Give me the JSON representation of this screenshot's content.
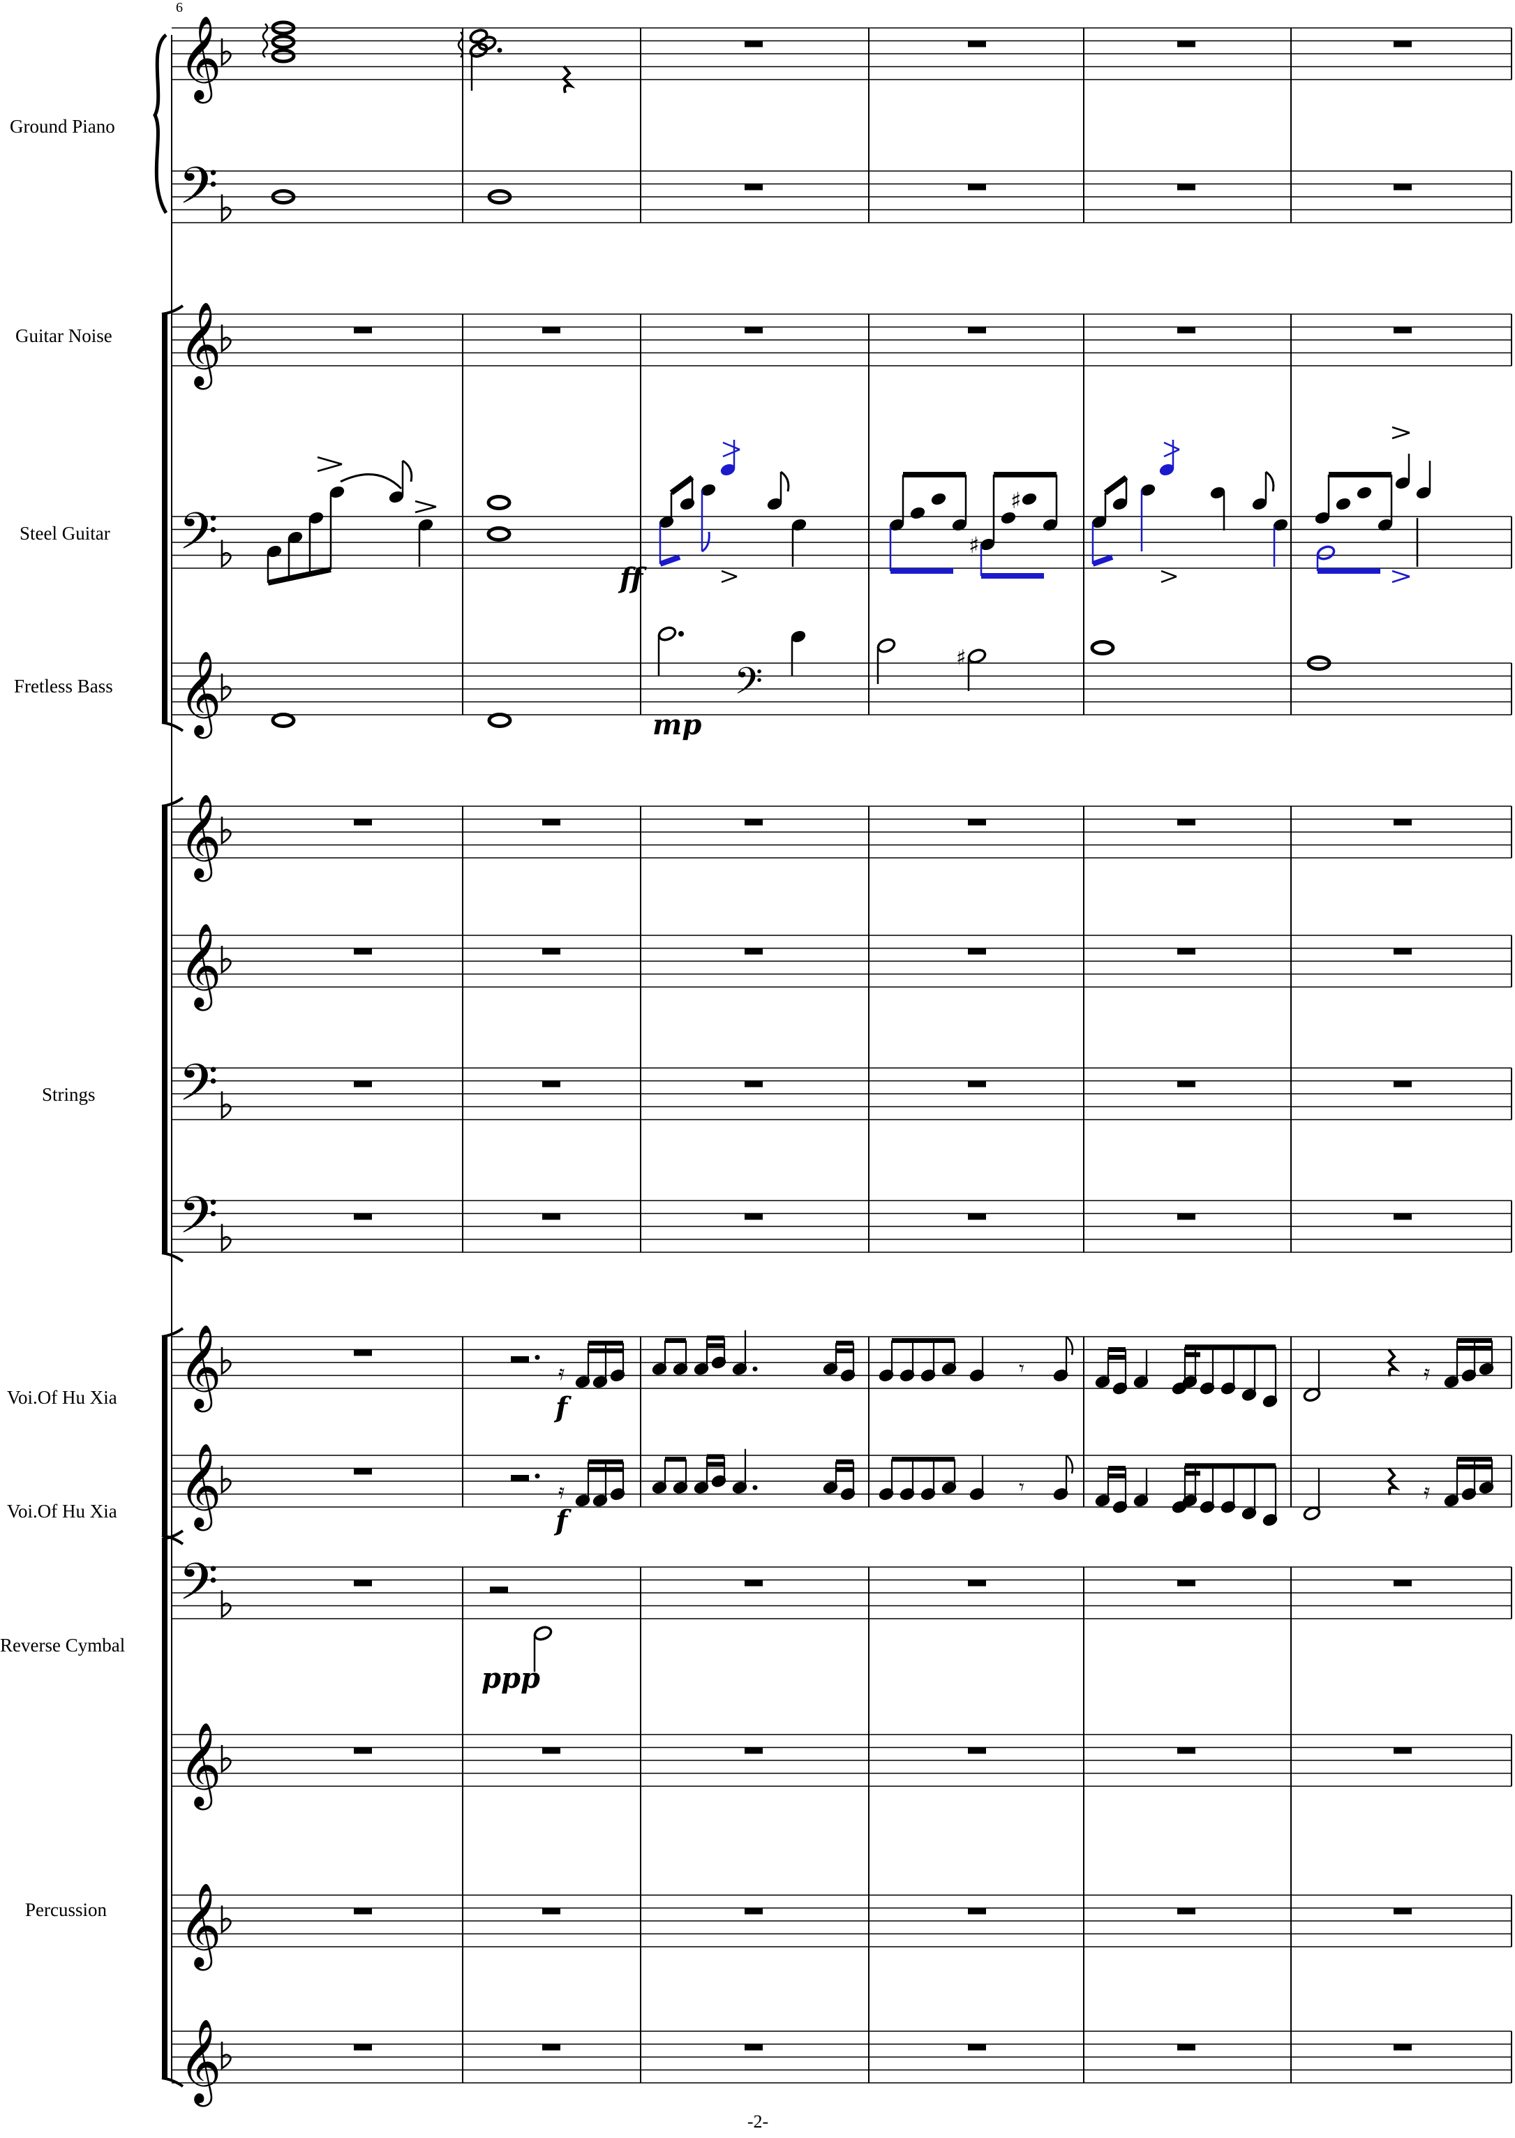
{
  "page": {
    "number": "-2-",
    "measure_number": "6"
  },
  "instruments": [
    {
      "id": "piano",
      "name": "Ground Piano"
    },
    {
      "id": "guitar_noise",
      "name": "Guitar Noise"
    },
    {
      "id": "steel_guitar",
      "name": "Steel Guitar"
    },
    {
      "id": "fretless_bass",
      "name": "Fretless Bass"
    },
    {
      "id": "strings",
      "name": "Strings"
    },
    {
      "id": "voice1",
      "name": "Voi.Of Hu Xia"
    },
    {
      "id": "voice2",
      "name": "Voi.Of Hu Xia"
    },
    {
      "id": "reverse_cymbal",
      "name": "Reverse Cymbal"
    },
    {
      "id": "percussion",
      "name": "Percussion"
    }
  ],
  "dynamics": {
    "steel_guitar": "ff",
    "fretless_bass": "mp",
    "voice1": "f",
    "voice2": "f",
    "reverse_cymbal": "ppp"
  },
  "key_signature": "F major (one flat)",
  "colors": {
    "ink": "#000000",
    "highlight": "#1a1acc"
  }
}
